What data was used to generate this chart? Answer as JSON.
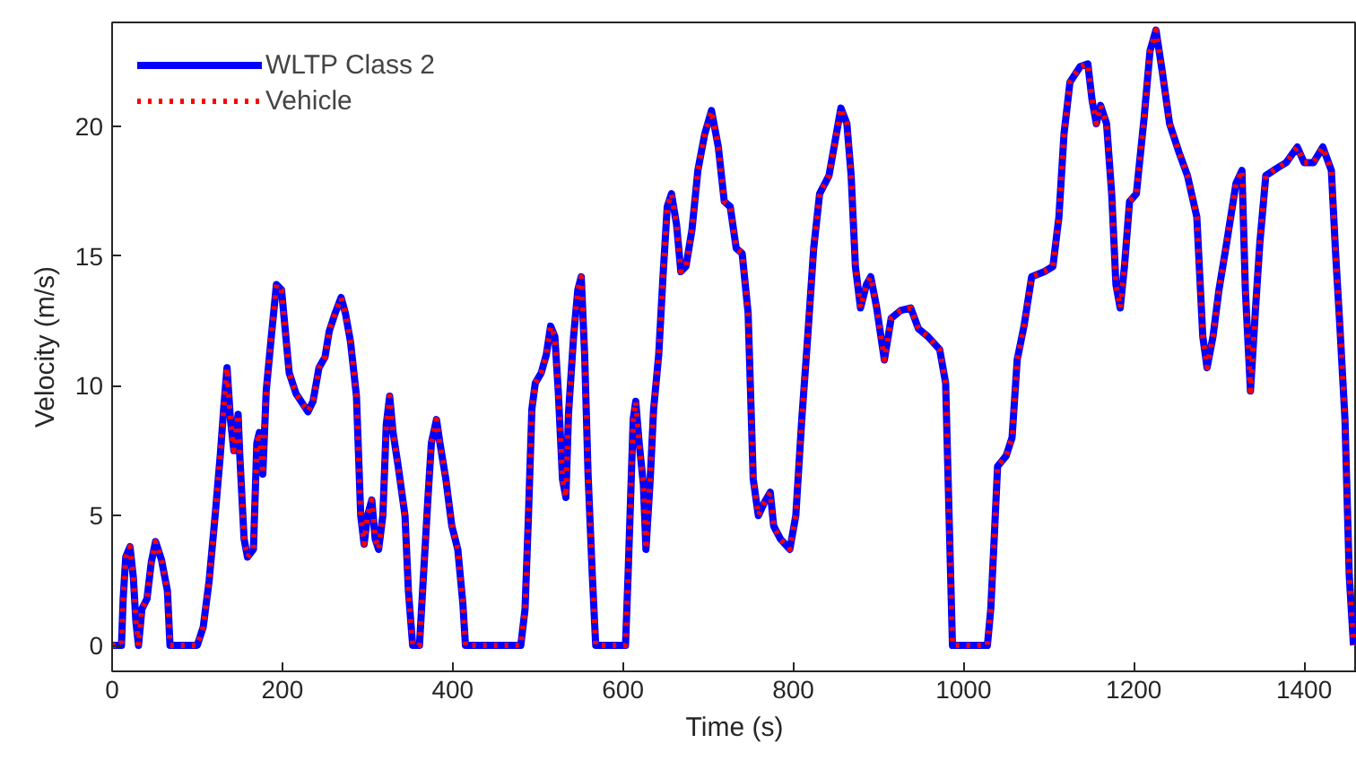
{
  "chart_data": {
    "type": "line",
    "xlabel": "Time (s)",
    "ylabel": "Velocity (m/s)",
    "xlim": [
      0,
      1462
    ],
    "ylim": [
      -1,
      24
    ],
    "xticks": [
      0,
      200,
      400,
      600,
      800,
      1000,
      1200,
      1400
    ],
    "yticks": [
      0,
      5,
      10,
      15,
      20
    ],
    "grid": false,
    "legend": "top left",
    "x": [
      0,
      11,
      13,
      16,
      21,
      25,
      28,
      31,
      35,
      41,
      46,
      51,
      58,
      65,
      68,
      100,
      107,
      114,
      121,
      127,
      131,
      135,
      139,
      143,
      148,
      150,
      155,
      159,
      166,
      170,
      173,
      177,
      181,
      187,
      193,
      199,
      208,
      216,
      230,
      236,
      243,
      250,
      255,
      262,
      269,
      274,
      280,
      287,
      292,
      296,
      300,
      305,
      309,
      313,
      318,
      322,
      326,
      330,
      336,
      344,
      348,
      353,
      361,
      365,
      371,
      375,
      381,
      385,
      392,
      399,
      406,
      412,
      415,
      480,
      485,
      489,
      493,
      497,
      504,
      510,
      515,
      520,
      524,
      529,
      533,
      536,
      542,
      547,
      551,
      555,
      559,
      564,
      568,
      603,
      606,
      612,
      615,
      619,
      624,
      627,
      632,
      636,
      642,
      647,
      652,
      657,
      663,
      668,
      674,
      681,
      688,
      696,
      704,
      712,
      719,
      726,
      733,
      740,
      747,
      753,
      759,
      766,
      773,
      777,
      785,
      796,
      803,
      810,
      817,
      824,
      831,
      842,
      849,
      856,
      863,
      868,
      873,
      879,
      886,
      891,
      898,
      907,
      915,
      926,
      938,
      947,
      958,
      972,
      979,
      983,
      987,
      1028,
      1032,
      1036,
      1040,
      1050,
      1057,
      1063,
      1071,
      1080,
      1095,
      1105,
      1112,
      1118,
      1125,
      1137,
      1146,
      1151,
      1156,
      1161,
      1168,
      1174,
      1179,
      1184,
      1189,
      1195,
      1203,
      1212,
      1219,
      1226,
      1233,
      1242,
      1253,
      1263,
      1274,
      1281,
      1286,
      1293,
      1300,
      1309,
      1320,
      1327,
      1331,
      1337,
      1343,
      1348,
      1355,
      1369,
      1379,
      1392,
      1400,
      1411,
      1422,
      1432,
      1437,
      1442,
      1448,
      1453,
      1458
    ],
    "series": [
      {
        "name": "WLTP Class 2",
        "color": "#0000ff",
        "line_style": "solid",
        "values": [
          0,
          0,
          1.8,
          3.4,
          3.8,
          2.6,
          0.9,
          0,
          1.4,
          1.8,
          3.2,
          4.0,
          3.3,
          2.1,
          0,
          0,
          0.7,
          2.5,
          5.0,
          7.3,
          9.1,
          10.7,
          8.7,
          7.5,
          8.9,
          7.3,
          4.1,
          3.4,
          3.7,
          7.8,
          8.2,
          6.6,
          9.8,
          11.9,
          13.9,
          13.7,
          10.5,
          9.7,
          9.0,
          9.4,
          10.7,
          11.1,
          12.1,
          12.8,
          13.4,
          12.8,
          11.7,
          9.6,
          5.0,
          3.9,
          5.0,
          5.6,
          4.1,
          3.7,
          5.0,
          8.5,
          9.6,
          8.2,
          6.9,
          5.0,
          2.1,
          0,
          0,
          2.3,
          5.7,
          7.8,
          8.7,
          7.8,
          6.4,
          4.6,
          3.7,
          1.6,
          0,
          0,
          1.4,
          5.0,
          9.1,
          10.1,
          10.5,
          11.2,
          12.3,
          11.9,
          9.8,
          6.4,
          5.7,
          8.9,
          11.9,
          13.7,
          14.2,
          11.2,
          6.6,
          2.7,
          0,
          0,
          2.7,
          8.7,
          9.4,
          7.8,
          6.2,
          3.7,
          6.4,
          9.1,
          11.2,
          14.2,
          16.9,
          17.4,
          16.2,
          14.4,
          14.6,
          16.0,
          18.3,
          19.7,
          20.6,
          19.2,
          17.1,
          16.9,
          15.3,
          15.1,
          12.8,
          6.4,
          5.0,
          5.5,
          5.9,
          4.6,
          4.1,
          3.7,
          5.0,
          8.7,
          11.9,
          15.3,
          17.4,
          18.1,
          19.4,
          20.7,
          20.1,
          18.1,
          14.6,
          13.0,
          13.9,
          14.2,
          13.0,
          11.0,
          12.6,
          12.9,
          13.0,
          12.2,
          11.9,
          11.4,
          10.1,
          5.0,
          0,
          0,
          1.4,
          4.1,
          6.9,
          7.3,
          8.0,
          11.0,
          12.3,
          14.2,
          14.4,
          14.6,
          16.5,
          19.7,
          21.7,
          22.3,
          22.4,
          21.0,
          20.1,
          20.8,
          20.1,
          17.4,
          13.9,
          13.0,
          14.6,
          17.1,
          17.4,
          20.3,
          22.9,
          23.7,
          22.2,
          20.1,
          19.0,
          18.1,
          16.5,
          11.9,
          10.7,
          11.9,
          13.7,
          15.5,
          17.8,
          18.3,
          13.7,
          9.8,
          13.0,
          15.5,
          18.1,
          18.4,
          18.6,
          19.2,
          18.6,
          18.6,
          19.2,
          18.3,
          15.1,
          12.3,
          8.7,
          2.7,
          0
        ]
      },
      {
        "name": "Vehicle",
        "color": "#ff0000",
        "line_style": "dotted",
        "values": [
          0,
          0,
          1.8,
          3.4,
          3.8,
          2.6,
          0.9,
          0,
          1.4,
          1.8,
          3.2,
          4.0,
          3.3,
          2.1,
          0,
          0,
          0.7,
          2.5,
          5.0,
          7.3,
          9.1,
          10.7,
          8.7,
          7.5,
          8.9,
          7.3,
          4.1,
          3.4,
          3.7,
          7.8,
          8.2,
          6.6,
          9.8,
          11.9,
          13.9,
          13.7,
          10.5,
          9.7,
          9.0,
          9.4,
          10.7,
          11.1,
          12.1,
          12.8,
          13.4,
          12.8,
          11.7,
          9.6,
          5.0,
          3.9,
          5.0,
          5.6,
          4.1,
          3.7,
          5.0,
          8.5,
          9.6,
          8.2,
          6.9,
          5.0,
          2.1,
          0,
          0,
          2.3,
          5.7,
          7.8,
          8.7,
          7.8,
          6.4,
          4.6,
          3.7,
          1.6,
          0,
          0,
          1.4,
          5.0,
          9.1,
          10.1,
          10.5,
          11.2,
          12.3,
          11.9,
          9.8,
          6.4,
          5.7,
          8.9,
          11.9,
          13.7,
          14.2,
          11.2,
          6.6,
          2.7,
          0,
          0,
          2.7,
          8.7,
          9.4,
          7.8,
          6.2,
          3.7,
          6.4,
          9.1,
          11.2,
          14.2,
          16.9,
          17.4,
          16.2,
          14.4,
          14.6,
          16.0,
          18.3,
          19.7,
          20.6,
          19.2,
          17.1,
          16.9,
          15.3,
          15.1,
          12.8,
          6.4,
          5.0,
          5.5,
          5.9,
          4.6,
          4.1,
          3.7,
          5.0,
          8.7,
          11.9,
          15.3,
          17.4,
          18.1,
          19.4,
          20.7,
          20.1,
          18.1,
          14.6,
          13.0,
          13.9,
          14.2,
          13.0,
          11.0,
          12.6,
          12.9,
          13.0,
          12.2,
          11.9,
          11.4,
          10.1,
          5.0,
          0,
          0,
          1.4,
          4.1,
          6.9,
          7.3,
          8.0,
          11.0,
          12.3,
          14.2,
          14.4,
          14.6,
          16.5,
          19.7,
          21.7,
          22.3,
          22.4,
          21.0,
          20.1,
          20.8,
          20.1,
          17.4,
          13.9,
          13.0,
          14.6,
          17.1,
          17.4,
          20.3,
          22.9,
          23.7,
          22.2,
          20.1,
          19.0,
          18.1,
          16.5,
          11.9,
          10.7,
          11.9,
          13.7,
          15.5,
          17.8,
          18.3,
          13.7,
          9.8,
          13.0,
          15.5,
          18.1,
          18.4,
          18.6,
          19.2,
          18.6,
          18.6,
          19.2,
          18.3,
          15.1,
          12.3,
          8.7,
          2.7,
          0
        ]
      }
    ]
  }
}
